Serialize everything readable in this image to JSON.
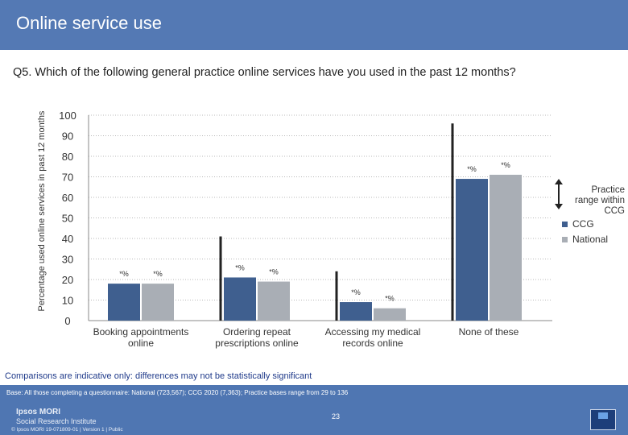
{
  "header": {
    "title": "Online service use"
  },
  "question": "Q5. Which of the following general practice online services have you used in the past 12 months?",
  "legend": {
    "range_label": "Practice range within CCG",
    "items": [
      {
        "name": "CCG",
        "color": "#3f5f8f"
      },
      {
        "name": "National",
        "color": "#a9aeb5"
      }
    ]
  },
  "note": "Comparisons are indicative only: differences may not be statistically significant",
  "footer": {
    "base": "Base: All those completing a questionnaire: National (723,567); CCG 2020 (7,363); Practice bases range from 29 to 136",
    "page_number": "23",
    "logo_line1": "Ipsos MORI",
    "logo_line2": "Social Research Institute",
    "copyright": "© Ipsos MORI   19-071809-01 | Version 1 | Public"
  },
  "chart_data": {
    "type": "bar",
    "ylabel": "Percentage used online services in past 12 months",
    "ylim": [
      0,
      100
    ],
    "yticks": [
      0,
      10,
      20,
      30,
      40,
      50,
      60,
      70,
      80,
      90,
      100
    ],
    "grid": true,
    "categories": [
      "Booking appointments online",
      "Ordering repeat prescriptions online",
      "Accessing my medical records online",
      "None of these"
    ],
    "series": [
      {
        "name": "CCG",
        "color": "#3f5f8f",
        "values": [
          18,
          21,
          9,
          69
        ],
        "labels": [
          "*%",
          "*%",
          "*%",
          "*%"
        ]
      },
      {
        "name": "National",
        "color": "#a9aeb5",
        "values": [
          18,
          19,
          6,
          71
        ],
        "labels": [
          "*%",
          "*%",
          "*%",
          "*%"
        ]
      }
    ],
    "range_max": [
      null,
      41,
      24,
      96
    ]
  }
}
